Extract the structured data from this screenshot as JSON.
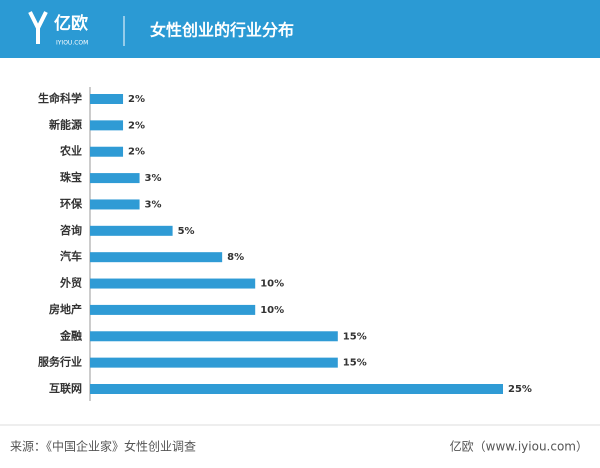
{
  "header": {
    "logo": "亿欧",
    "logo_sub": "IYIOU.COM"
  },
  "chart_data": {
    "type": "bar",
    "orientation": "horizontal",
    "title": "女性创业的行业分布",
    "categories": [
      "生命科学",
      "新能源",
      "农业",
      "珠宝",
      "环保",
      "咨询",
      "汽车",
      "外贸",
      "房地产",
      "金融",
      "服务行业",
      "互联网"
    ],
    "values": [
      2,
      2,
      2,
      3,
      3,
      5,
      8,
      10,
      10,
      15,
      15,
      25
    ],
    "value_labels": [
      "2%",
      "2%",
      "2%",
      "3%",
      "3%",
      "5%",
      "8%",
      "10%",
      "10%",
      "15%",
      "15%",
      "25%"
    ],
    "color": "#2f9bd5"
  },
  "footer": {
    "source": "来源：《中国企业家》女性创业调查",
    "credit": "亿欧（www.iyiou.com）"
  }
}
